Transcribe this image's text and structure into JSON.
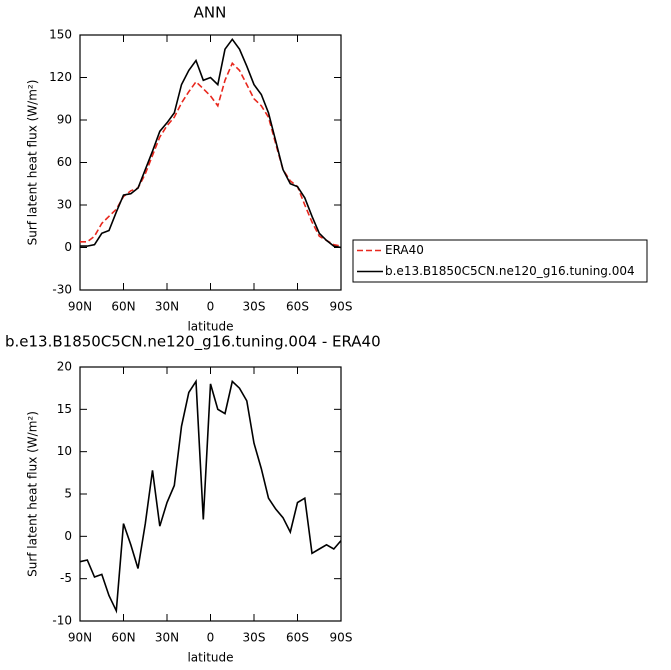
{
  "chart_data": [
    {
      "type": "line",
      "title": "ANN",
      "x_label": "latitude",
      "y_label": "Surf latent heat flux (W/m²)",
      "x": [
        90,
        85,
        80,
        75,
        70,
        65,
        60,
        55,
        50,
        45,
        40,
        35,
        30,
        25,
        20,
        15,
        10,
        5,
        0,
        -5,
        -10,
        -15,
        -20,
        -25,
        -30,
        -35,
        -40,
        -45,
        -50,
        -55,
        -60,
        -65,
        -70,
        -75,
        -80,
        -85,
        -90
      ],
      "series": [
        {
          "name": "ERA40",
          "color": "#e8281e",
          "dash": true,
          "values": [
            4,
            4,
            8,
            17,
            22,
            27,
            36,
            40,
            42,
            52,
            65,
            78,
            86,
            92,
            102,
            110,
            117,
            112,
            107,
            100,
            118,
            130,
            125,
            115,
            105,
            100,
            92,
            73,
            55,
            47,
            43,
            30,
            18,
            8,
            5,
            2,
            1
          ]
        },
        {
          "name": "b.e13.B1850C5CN.ne120_g16.tuning.004",
          "color": "#000000",
          "dash": false,
          "values": [
            1,
            1,
            2,
            10,
            12,
            25,
            37,
            38,
            42,
            55,
            68,
            82,
            88,
            95,
            115,
            125,
            132,
            118,
            120,
            115,
            140,
            147,
            140,
            128,
            115,
            108,
            95,
            75,
            55,
            45,
            43,
            35,
            22,
            10,
            5,
            1,
            0
          ]
        }
      ],
      "xlim": [
        90,
        -90
      ],
      "xticks": [
        {
          "value": 90,
          "label": "90N"
        },
        {
          "value": 60,
          "label": "60N"
        },
        {
          "value": 30,
          "label": "30N"
        },
        0,
        {
          "value": -30,
          "label": "30S"
        },
        {
          "value": -60,
          "label": "60S"
        },
        {
          "value": -90,
          "label": "90S"
        }
      ],
      "ylim": [
        -30,
        150
      ],
      "yticks": [
        -30,
        0,
        30,
        60,
        90,
        120,
        150
      ],
      "legend": "right"
    },
    {
      "type": "line",
      "title": "b.e13.B1850C5CN.ne120_g16.tuning.004 - ERA40",
      "x_label": "latitude",
      "y_label": "Surf latent heat flux (W/m²)",
      "x": [
        90,
        85,
        80,
        75,
        70,
        65,
        60,
        55,
        50,
        45,
        40,
        35,
        30,
        25,
        20,
        15,
        10,
        5,
        0,
        -5,
        -10,
        -15,
        -20,
        -25,
        -30,
        -35,
        -40,
        -45,
        -50,
        -55,
        -60,
        -65,
        -70,
        -75,
        -80,
        -85,
        -90
      ],
      "series": [
        {
          "color": "#000000",
          "dash": false,
          "values": [
            -3,
            -2.8,
            -4.8,
            -4.5,
            -7,
            -8.8,
            1.5,
            -1,
            -3.8,
            1.5,
            7.8,
            1.2,
            4,
            6,
            13,
            17,
            18.3,
            2,
            18,
            15,
            14.5,
            18.3,
            17.5,
            16,
            11,
            8,
            4.5,
            3.2,
            2.2,
            0.5,
            4,
            4.5,
            -2,
            -1.5,
            -1,
            -1.5,
            -0.5
          ]
        }
      ],
      "xlim": [
        90,
        -90
      ],
      "xticks": [
        {
          "value": 90,
          "label": "90N"
        },
        {
          "value": 60,
          "label": "60N"
        },
        {
          "value": 30,
          "label": "30N"
        },
        0,
        {
          "value": -30,
          "label": "30S"
        },
        {
          "value": -60,
          "label": "60S"
        },
        {
          "value": -90,
          "label": "90S"
        }
      ],
      "ylim": [
        -10,
        20
      ],
      "yticks": [
        -10,
        -5,
        0,
        5,
        10,
        15,
        20
      ]
    }
  ]
}
